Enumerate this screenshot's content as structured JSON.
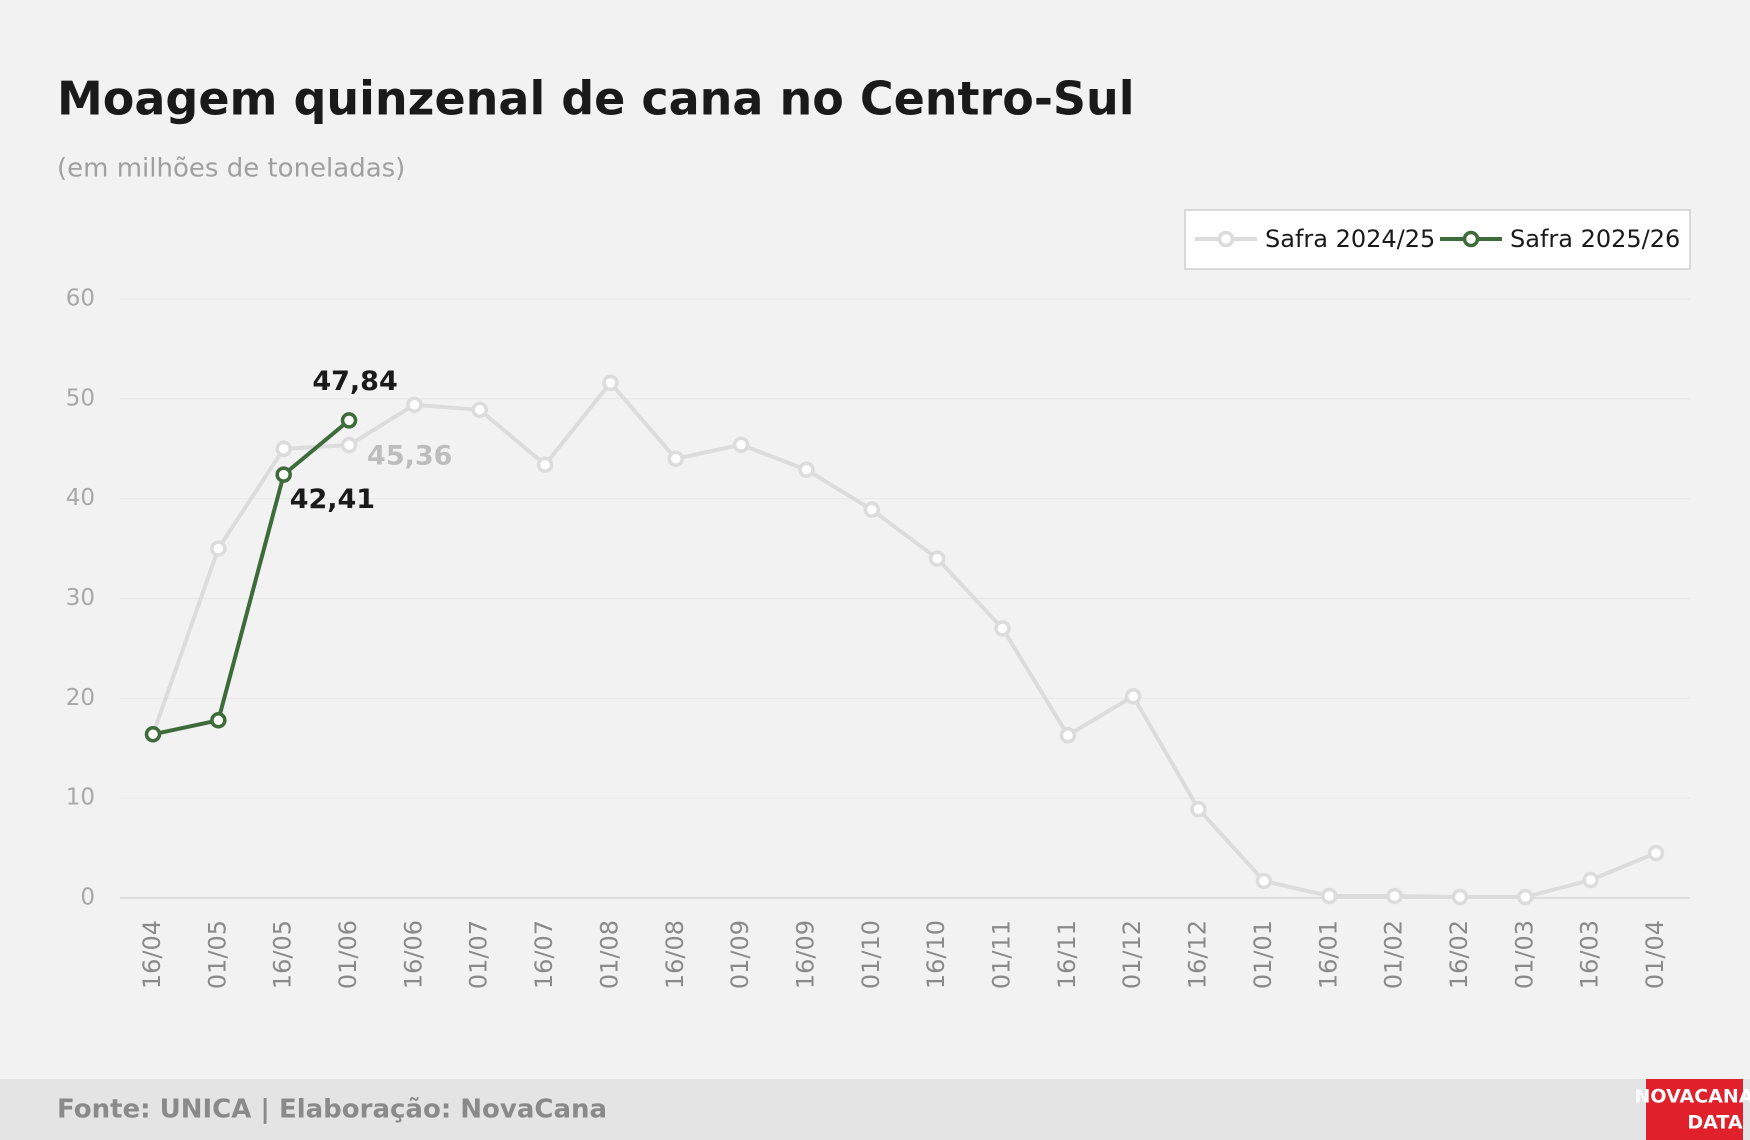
{
  "chart_data": {
    "type": "line",
    "title": "Moagem quinzenal de cana no Centro-Sul",
    "subtitle": "(em milhões de toneladas)",
    "categories": [
      "16/04",
      "01/05",
      "16/05",
      "01/06",
      "16/06",
      "01/07",
      "16/07",
      "01/08",
      "16/08",
      "01/09",
      "16/09",
      "01/10",
      "16/10",
      "01/11",
      "16/11",
      "01/12",
      "16/12",
      "01/01",
      "16/01",
      "01/02",
      "16/02",
      "01/03",
      "16/03",
      "01/04"
    ],
    "series": [
      {
        "name": "Safra 2024/25",
        "color": "#dcdcdc",
        "label_color": "#bdbdbd",
        "values": [
          16.4,
          35.0,
          45.0,
          45.36,
          49.4,
          48.9,
          43.4,
          51.6,
          44.0,
          45.4,
          42.9,
          38.9,
          34.0,
          27.0,
          16.3,
          20.2,
          8.9,
          1.7,
          0.2,
          0.2,
          0.1,
          0.1,
          1.8,
          4.5
        ],
        "value_labels": [
          null,
          null,
          null,
          "45,36",
          null,
          null,
          null,
          null,
          null,
          null,
          null,
          null,
          null,
          null,
          null,
          null,
          null,
          null,
          null,
          null,
          null,
          null,
          null,
          null
        ]
      },
      {
        "name": "Safra 2025/26",
        "color": "#3d6b3a",
        "label_color": "#1a1a1a",
        "values": [
          16.4,
          17.8,
          42.41,
          47.84,
          null,
          null,
          null,
          null,
          null,
          null,
          null,
          null,
          null,
          null,
          null,
          null,
          null,
          null,
          null,
          null,
          null,
          null,
          null,
          null
        ],
        "value_labels": [
          null,
          null,
          "42,41",
          "47,84",
          null,
          null,
          null,
          null,
          null,
          null,
          null,
          null,
          null,
          null,
          null,
          null,
          null,
          null,
          null,
          null,
          null,
          null,
          null,
          null
        ]
      }
    ],
    "ylim": [
      0,
      60
    ],
    "yticks": [
      0,
      10,
      20,
      30,
      40,
      50,
      60
    ],
    "grid": true,
    "legend": "top-right",
    "source": "Fonte: UNICA | Elaboração: NovaCana",
    "logo": [
      "NOVACANA",
      "DATA"
    ]
  }
}
